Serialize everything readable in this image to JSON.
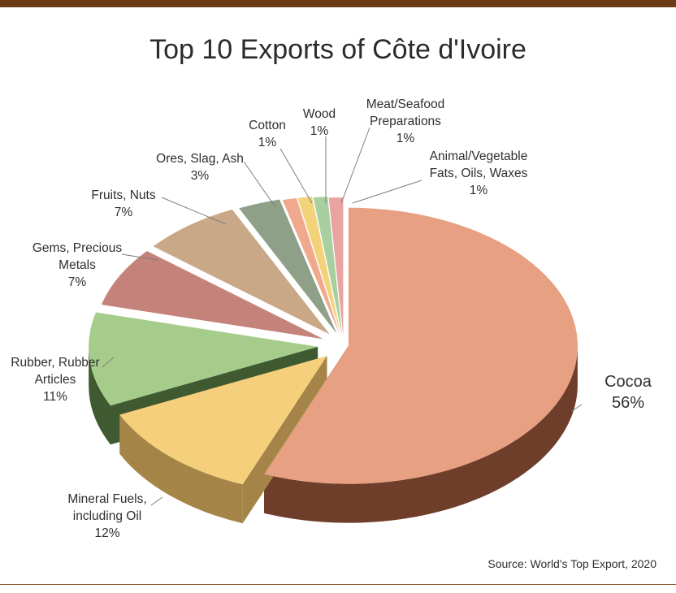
{
  "chart_data": {
    "type": "pie",
    "title": "Top 10 Exports of Côte d'Ivoire",
    "source": "Source: World's Top Export, 2020",
    "slices": [
      {
        "label_lines": [
          "Cocoa",
          "56%"
        ],
        "value": 56,
        "color": "#e8a083",
        "side_color": "#6e3e2a"
      },
      {
        "label_lines": [
          "Mineral Fuels,",
          "including Oil",
          "12%"
        ],
        "value": 12,
        "color": "#f6cf7c",
        "side_color": "#a48547"
      },
      {
        "label_lines": [
          "Rubber, Rubber",
          "Articles",
          "11%"
        ],
        "value": 11,
        "color": "#a6cc8c",
        "side_color": "#3f5a31"
      },
      {
        "label_lines": [
          "Gems, Precious",
          "Metals",
          "7%"
        ],
        "value": 7,
        "color": "#c4827a",
        "side_color": "#5e2e2a"
      },
      {
        "label_lines": [
          "Fruits, Nuts",
          "7%"
        ],
        "value": 7,
        "color": "#c9a888",
        "side_color": "#5c4230"
      },
      {
        "label_lines": [
          "Ores, Slag, Ash",
          "3%"
        ],
        "value": 3,
        "color": "#8fa088",
        "side_color": "#3b4a36"
      },
      {
        "label_lines": [
          "Cotton",
          "1%"
        ],
        "value": 1,
        "color": "#f1a98d",
        "side_color": "#8a5b45"
      },
      {
        "label_lines": [
          "Wood",
          "1%"
        ],
        "value": 1,
        "color": "#f3d37a",
        "side_color": "#94803f"
      },
      {
        "label_lines": [
          "Meat/Seafood",
          "Preparations",
          "1%"
        ],
        "value": 1,
        "color": "#a9cfa0",
        "side_color": "#52704a"
      },
      {
        "label_lines": [
          "Animal/Vegetable",
          "Fats, Oils, Waxes",
          "1%"
        ],
        "value": 1,
        "color": "#e9a3a0",
        "side_color": "#7a4442"
      }
    ]
  }
}
